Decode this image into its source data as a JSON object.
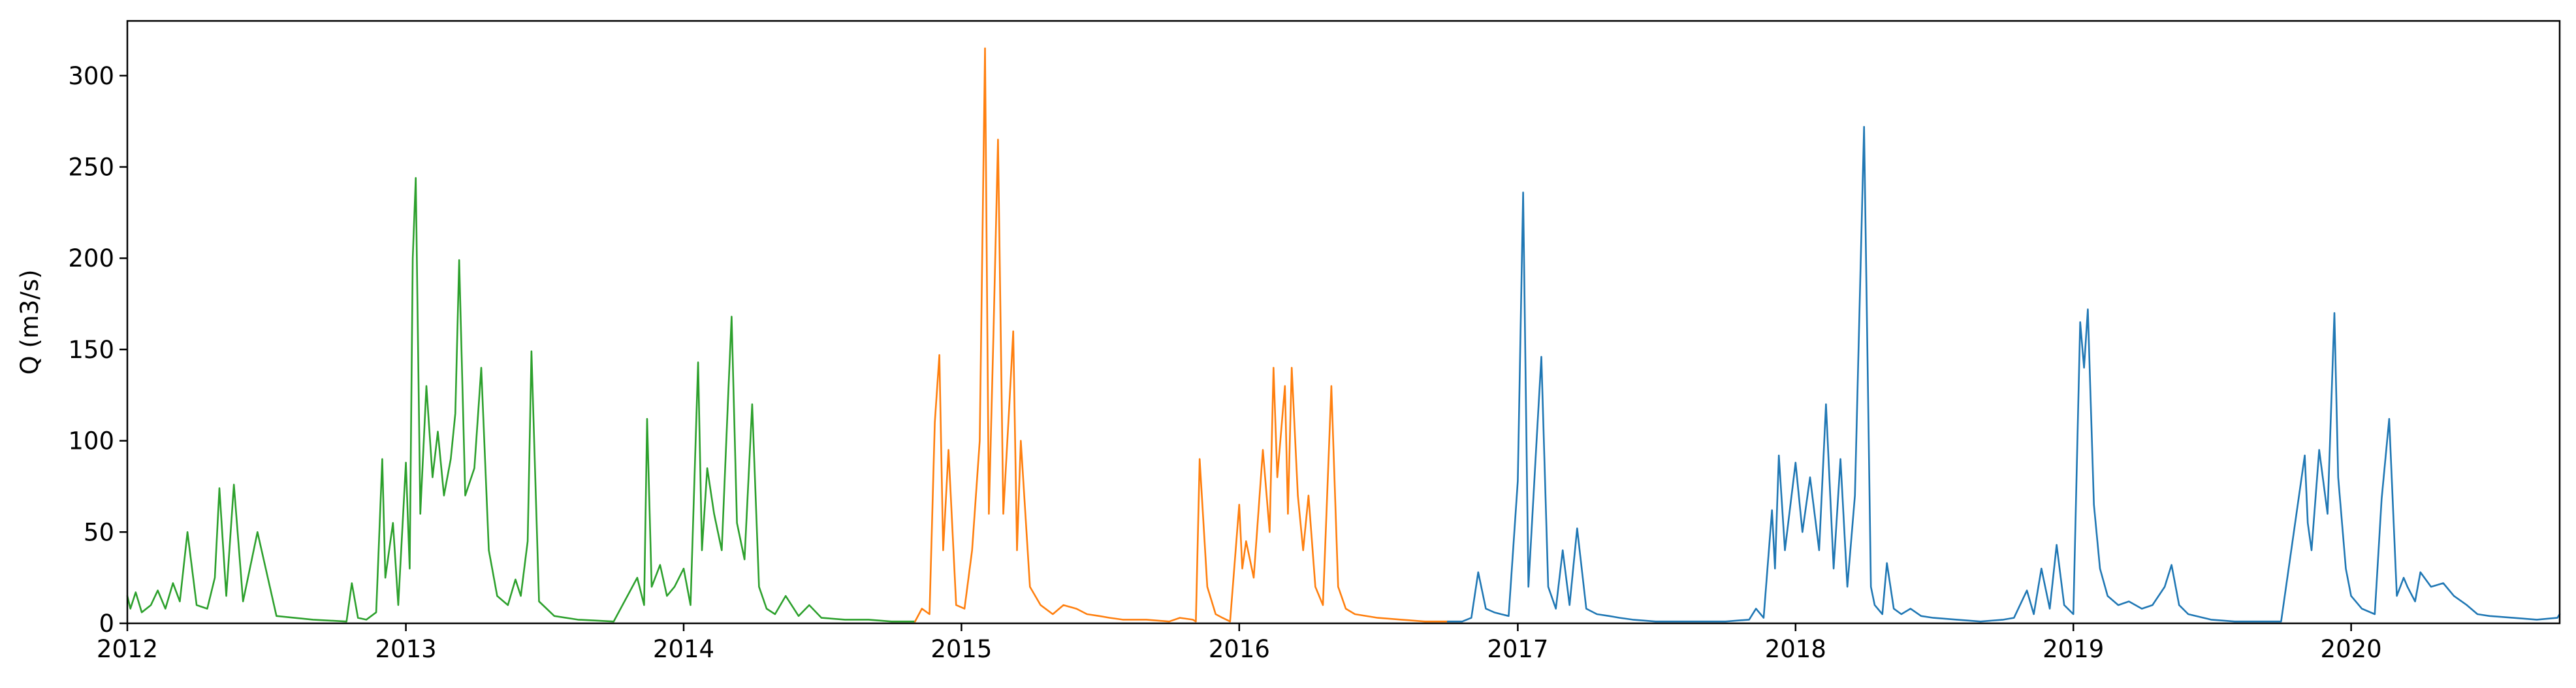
{
  "chart_data": {
    "type": "line",
    "title": "",
    "xlabel": "",
    "ylabel": "Q (m3/s)",
    "xlim": [
      "2012-01-01",
      "2020-10-01"
    ],
    "ylim": [
      0,
      330
    ],
    "x_ticks": [
      "2012",
      "2013",
      "2014",
      "2015",
      "2016",
      "2017",
      "2018",
      "2019",
      "2020"
    ],
    "y_ticks": [
      0,
      50,
      100,
      150,
      200,
      250,
      300
    ],
    "grid": false,
    "legend": "none",
    "series": [
      {
        "color": "#2ca02c",
        "x": [
          "2012-01-01",
          "2012-01-05",
          "2012-01-12",
          "2012-01-20",
          "2012-02-01",
          "2012-02-10",
          "2012-02-20",
          "2012-03-01",
          "2012-03-10",
          "2012-03-20",
          "2012-04-01",
          "2012-04-15",
          "2012-04-25",
          "2012-05-01",
          "2012-05-10",
          "2012-05-20",
          "2012-06-01",
          "2012-06-20",
          "2012-07-15",
          "2012-09-01",
          "2012-10-15",
          "2012-10-22",
          "2012-10-30",
          "2012-11-10",
          "2012-11-23",
          "2012-12-01",
          "2012-12-05",
          "2012-12-15",
          "2012-12-22",
          "2013-01-01",
          "2013-01-06",
          "2013-01-10",
          "2013-01-14",
          "2013-01-20",
          "2013-01-28",
          "2013-02-05",
          "2013-02-12",
          "2013-02-20",
          "2013-03-01",
          "2013-03-07",
          "2013-03-12",
          "2013-03-20",
          "2013-04-01",
          "2013-04-10",
          "2013-04-20",
          "2013-05-01",
          "2013-05-15",
          "2013-05-25",
          "2013-06-01",
          "2013-06-10",
          "2013-06-15",
          "2013-06-25",
          "2013-07-15",
          "2013-08-15",
          "2013-10-01",
          "2013-11-01",
          "2013-11-10",
          "2013-11-14",
          "2013-11-20",
          "2013-12-01",
          "2013-12-10",
          "2013-12-20",
          "2014-01-01",
          "2014-01-10",
          "2014-01-20",
          "2014-01-25",
          "2014-02-01",
          "2014-02-10",
          "2014-02-20",
          "2014-03-01",
          "2014-03-05",
          "2014-03-12",
          "2014-03-22",
          "2014-04-01",
          "2014-04-10",
          "2014-04-20",
          "2014-05-01",
          "2014-05-15",
          "2014-06-01",
          "2014-06-15",
          "2014-07-01",
          "2014-08-01",
          "2014-09-01",
          "2014-10-01",
          "2014-11-01"
        ],
        "y": [
          15,
          8,
          17,
          6,
          10,
          18,
          8,
          22,
          12,
          50,
          10,
          8,
          25,
          74,
          15,
          76,
          12,
          50,
          4,
          2,
          1,
          22,
          3,
          2,
          6,
          90,
          25,
          55,
          10,
          88,
          30,
          200,
          244,
          60,
          130,
          80,
          105,
          70,
          90,
          115,
          199,
          70,
          85,
          140,
          40,
          15,
          10,
          24,
          15,
          45,
          149,
          12,
          4,
          2,
          1,
          25,
          10,
          112,
          20,
          32,
          15,
          20,
          30,
          10,
          143,
          40,
          85,
          60,
          40,
          130,
          168,
          55,
          35,
          120,
          20,
          8,
          5,
          15,
          4,
          10,
          3,
          2,
          2,
          1,
          1
        ]
      },
      {
        "color": "#ff7f0e",
        "x": [
          "2014-11-01",
          "2014-11-10",
          "2014-11-20",
          "2014-11-27",
          "2014-12-03",
          "2014-12-08",
          "2014-12-15",
          "2014-12-25",
          "2015-01-05",
          "2015-01-15",
          "2015-01-25",
          "2015-02-01",
          "2015-02-06",
          "2015-02-12",
          "2015-02-18",
          "2015-02-25",
          "2015-03-05",
          "2015-03-10",
          "2015-03-15",
          "2015-03-20",
          "2015-04-01",
          "2015-04-15",
          "2015-05-01",
          "2015-05-15",
          "2015-06-01",
          "2015-06-15",
          "2015-07-01",
          "2015-07-15",
          "2015-08-01",
          "2015-09-01",
          "2015-10-01",
          "2015-10-15",
          "2015-11-01",
          "2015-11-05",
          "2015-11-10",
          "2015-11-20",
          "2015-12-01",
          "2015-12-10",
          "2015-12-20",
          "2016-01-01",
          "2016-01-05",
          "2016-01-10",
          "2016-01-20",
          "2016-02-01",
          "2016-02-10",
          "2016-02-15",
          "2016-02-20",
          "2016-03-01",
          "2016-03-05",
          "2016-03-10",
          "2016-03-18",
          "2016-03-25",
          "2016-04-01",
          "2016-04-10",
          "2016-04-20",
          "2016-05-01",
          "2016-05-10",
          "2016-05-20",
          "2016-06-01",
          "2016-07-01",
          "2016-08-01",
          "2016-09-01",
          "2016-10-01"
        ],
        "y": [
          1,
          8,
          5,
          110,
          147,
          40,
          95,
          10,
          8,
          40,
          100,
          315,
          60,
          158,
          265,
          60,
          120,
          160,
          40,
          100,
          20,
          10,
          5,
          10,
          8,
          5,
          4,
          3,
          2,
          2,
          1,
          3,
          2,
          1,
          90,
          20,
          5,
          3,
          1,
          65,
          30,
          45,
          25,
          95,
          50,
          140,
          80,
          130,
          60,
          140,
          70,
          40,
          70,
          20,
          10,
          130,
          20,
          8,
          5,
          3,
          2,
          1,
          1
        ]
      },
      {
        "color": "#1f77b4",
        "x": [
          "2016-10-01",
          "2016-10-20",
          "2016-11-01",
          "2016-11-10",
          "2016-11-20",
          "2016-12-01",
          "2016-12-10",
          "2016-12-20",
          "2017-01-01",
          "2017-01-08",
          "2017-01-15",
          "2017-01-25",
          "2017-02-01",
          "2017-02-10",
          "2017-02-20",
          "2017-03-01",
          "2017-03-10",
          "2017-03-20",
          "2017-04-01",
          "2017-04-15",
          "2017-05-01",
          "2017-05-15",
          "2017-06-01",
          "2017-07-01",
          "2017-08-01",
          "2017-09-01",
          "2017-10-01",
          "2017-11-01",
          "2017-11-10",
          "2017-11-20",
          "2017-12-01",
          "2017-12-05",
          "2017-12-10",
          "2017-12-18",
          "2018-01-01",
          "2018-01-10",
          "2018-01-20",
          "2018-02-01",
          "2018-02-10",
          "2018-02-20",
          "2018-03-01",
          "2018-03-10",
          "2018-03-20",
          "2018-04-01",
          "2018-04-10",
          "2018-04-15",
          "2018-04-25",
          "2018-05-01",
          "2018-05-10",
          "2018-05-20",
          "2018-06-01",
          "2018-06-15",
          "2018-07-01",
          "2018-08-01",
          "2018-09-01",
          "2018-10-01",
          "2018-10-15",
          "2018-11-01",
          "2018-11-10",
          "2018-11-20",
          "2018-12-01",
          "2018-12-10",
          "2018-12-20",
          "2019-01-01",
          "2019-01-10",
          "2019-01-15",
          "2019-01-20",
          "2019-01-28",
          "2019-02-05",
          "2019-02-15",
          "2019-03-01",
          "2019-03-15",
          "2019-04-01",
          "2019-04-15",
          "2019-05-01",
          "2019-05-10",
          "2019-05-20",
          "2019-06-01",
          "2019-07-01",
          "2019-08-01",
          "2019-09-01",
          "2019-10-01",
          "2019-11-01",
          "2019-11-05",
          "2019-11-10",
          "2019-11-20",
          "2019-12-01",
          "2019-12-10",
          "2019-12-15",
          "2019-12-25",
          "2020-01-01",
          "2020-01-15",
          "2020-02-01",
          "2020-02-10",
          "2020-02-20",
          "2020-03-01",
          "2020-03-10",
          "2020-03-15",
          "2020-03-25",
          "2020-04-01",
          "2020-04-15",
          "2020-05-01",
          "2020-05-15",
          "2020-06-01",
          "2020-06-15",
          "2020-07-01",
          "2020-08-01",
          "2020-09-01",
          "2020-09-28",
          "2020-10-01"
        ],
        "y": [
          1,
          1,
          3,
          28,
          8,
          6,
          5,
          4,
          78,
          236,
          20,
          95,
          146,
          20,
          8,
          40,
          10,
          52,
          8,
          5,
          4,
          3,
          2,
          1,
          1,
          1,
          1,
          2,
          8,
          3,
          62,
          30,
          92,
          40,
          88,
          50,
          80,
          40,
          120,
          30,
          90,
          20,
          70,
          272,
          20,
          10,
          5,
          33,
          8,
          5,
          8,
          4,
          3,
          2,
          1,
          2,
          3,
          18,
          5,
          30,
          8,
          43,
          10,
          5,
          165,
          140,
          172,
          65,
          30,
          15,
          10,
          12,
          8,
          10,
          20,
          32,
          10,
          5,
          2,
          1,
          1,
          1,
          92,
          55,
          40,
          95,
          60,
          170,
          80,
          30,
          15,
          8,
          5,
          68,
          112,
          15,
          25,
          20,
          12,
          28,
          20,
          22,
          15,
          10,
          5,
          4,
          3,
          2,
          3,
          5
        ]
      }
    ]
  }
}
